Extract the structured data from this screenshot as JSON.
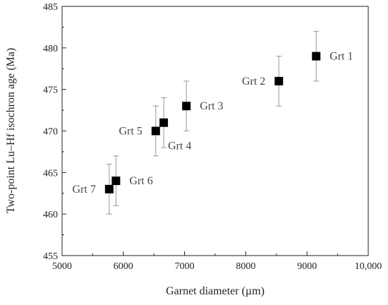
{
  "chart_data": {
    "type": "scatter",
    "xlabel": "Garnet diameter (µm)",
    "ylabel": "Two-point Lu–Hf isochron age (Ma)",
    "xlim": [
      5000,
      10000
    ],
    "ylim": [
      455,
      485
    ],
    "x_ticks": [
      5000,
      6000,
      7000,
      8000,
      9000,
      10000
    ],
    "x_tick_labels": [
      "5000",
      "6000",
      "7000",
      "8000",
      "9000",
      "10,000"
    ],
    "y_ticks": [
      455,
      460,
      465,
      470,
      475,
      480,
      485
    ],
    "y_tick_labels": [
      "455",
      "460",
      "465",
      "470",
      "475",
      "480",
      "485"
    ],
    "grid": false,
    "marker": "square",
    "marker_color": "#000000",
    "errorbar_color": "#999999",
    "points": [
      {
        "label": "Grt 1",
        "x": 9150,
        "y": 479,
        "err": 3,
        "label_side": "right"
      },
      {
        "label": "Grt 2",
        "x": 8540,
        "y": 476,
        "err": 3,
        "label_side": "left"
      },
      {
        "label": "Grt 3",
        "x": 7030,
        "y": 473,
        "err": 3,
        "label_side": "right"
      },
      {
        "label": "Grt 4",
        "x": 6660,
        "y": 471,
        "err": 3,
        "label_side": "below-right"
      },
      {
        "label": "Grt 5",
        "x": 6530,
        "y": 470,
        "err": 3,
        "label_side": "left"
      },
      {
        "label": "Grt 6",
        "x": 5880,
        "y": 464,
        "err": 3,
        "label_side": "right"
      },
      {
        "label": "Grt 7",
        "x": 5770,
        "y": 463,
        "err": 3,
        "label_side": "left"
      }
    ]
  }
}
